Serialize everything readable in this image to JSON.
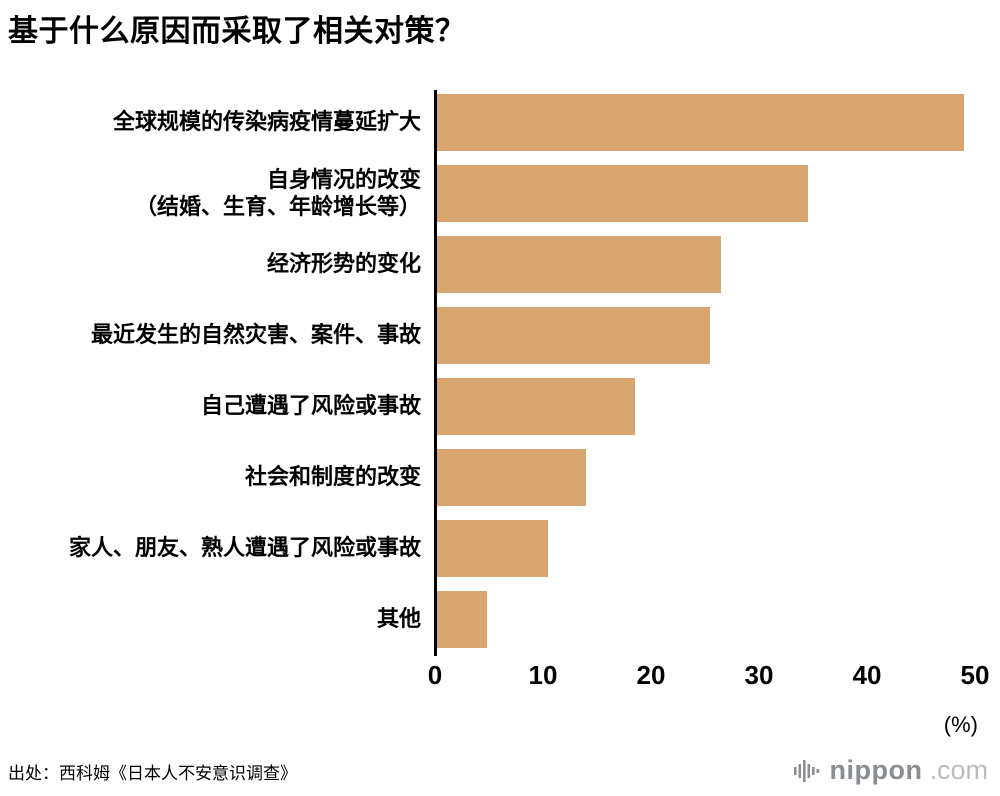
{
  "page": {
    "title": "基于什么原因而采取了相关对策？",
    "source": "出处：西科姆《日本人不安意识调查》"
  },
  "logo": {
    "name": "nippon",
    "suffix": ".com"
  },
  "chart_data": {
    "type": "bar",
    "orientation": "horizontal",
    "title": "基于什么原因而采取了相关对策？",
    "categories": [
      "全球规模的传染病疫情蔓延扩大",
      "自身情况的改变\n（结婚、生育、年龄增长等）",
      "经济形势的变化",
      "最近发生的自然灾害、案件、事故",
      "自己遭遇了风险或事故",
      "社会和制度的改变",
      "家人、朋友、熟人遭遇了风险或事故",
      "其他"
    ],
    "values": [
      49.0,
      34.5,
      26.5,
      25.5,
      18.5,
      14.0,
      10.5,
      4.8
    ],
    "xlim": [
      0,
      50
    ],
    "xticks": [
      0,
      10,
      20,
      30,
      40,
      50
    ],
    "xlabel": "(%)",
    "bar_color": "#d8a470",
    "grid": false,
    "legend": "none"
  }
}
